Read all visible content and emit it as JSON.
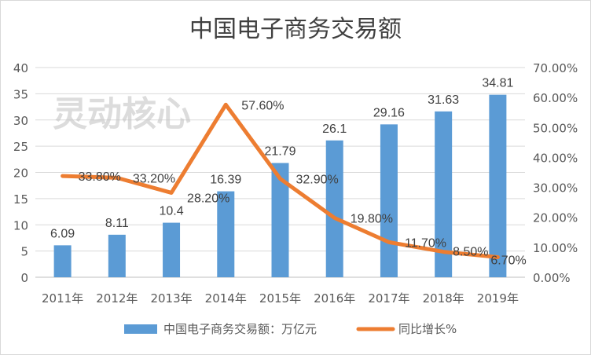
{
  "chart_data": {
    "type": "bar+line",
    "title": "中国电子商务交易额",
    "categories": [
      "2011年",
      "2012年",
      "2013年",
      "2014年",
      "2015年",
      "2016年",
      "2017年",
      "2018年",
      "2019年"
    ],
    "series": [
      {
        "name": "中国电子商务交易额：万亿元",
        "type": "bar",
        "axis": "left",
        "color": "#5B9BD5",
        "values": [
          6.09,
          8.11,
          10.4,
          16.39,
          21.79,
          26.1,
          29.16,
          31.63,
          34.81
        ],
        "labels": [
          "6.09",
          "8.11",
          "10.4",
          "16.39",
          "21.79",
          "26.1",
          "29.16",
          "31.63",
          "34.81"
        ]
      },
      {
        "name": "同比增长%",
        "type": "line",
        "axis": "right",
        "color": "#ED7D31",
        "values": [
          33.8,
          33.2,
          28.2,
          57.6,
          32.9,
          19.8,
          11.7,
          8.5,
          6.7
        ],
        "labels": [
          "33.80%",
          "33.20%",
          "28.20%",
          "57.60%",
          "32.90%",
          "19.80%",
          "11.70%",
          "8.50%",
          "6.70%"
        ]
      }
    ],
    "y_left": {
      "range": [
        0,
        40
      ],
      "ticks": [
        "0",
        "5",
        "10",
        "15",
        "20",
        "25",
        "30",
        "35",
        "40"
      ]
    },
    "y_right": {
      "range": [
        0,
        70
      ],
      "ticks": [
        "0.00%",
        "10.00%",
        "20.00%",
        "30.00%",
        "40.00%",
        "50.00%",
        "60.00%",
        "70.00%"
      ]
    },
    "grid": true,
    "legend": "bottom"
  },
  "watermark": "灵动核心"
}
